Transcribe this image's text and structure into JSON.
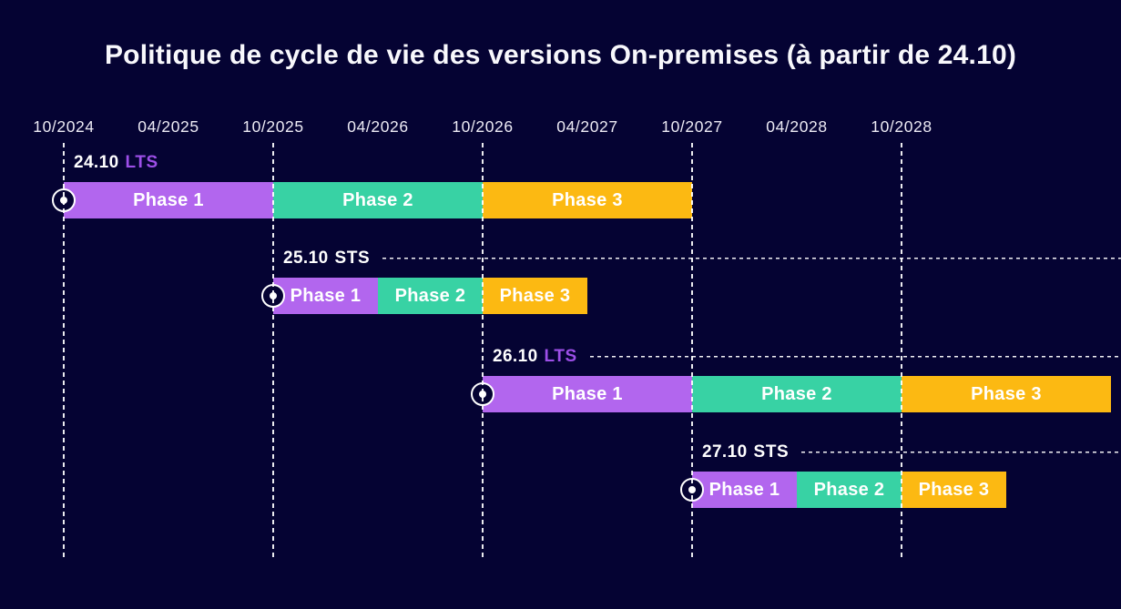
{
  "title": "Politique de cycle de vie des versions On-premises (à partir de 24.10)",
  "colors": {
    "background": "#050333",
    "bar_phase1": "#b266ee",
    "bar_phase2": "#38d2a4",
    "bar_phase3": "#fcb912",
    "lts_label": "#9d4fe8",
    "sts_label": "#ffffff",
    "text": "#ffffff",
    "gridline": "#ffffff"
  },
  "chart_data": {
    "type": "bar",
    "subtype": "gantt-release-timeline",
    "title": "Politique de cycle de vie des versions On-premises (à partir de 24.10)",
    "xlabel": "",
    "ylabel": "",
    "x_axis": {
      "ticks": [
        "10/2024",
        "04/2025",
        "10/2025",
        "04/2026",
        "10/2026",
        "04/2027",
        "10/2027",
        "04/2028",
        "10/2028"
      ],
      "gridlines_at": [
        "10/2024",
        "10/2025",
        "10/2026",
        "10/2027",
        "10/2028"
      ],
      "grid": "vertical-dashed-yearly"
    },
    "legend": "none",
    "rows": [
      {
        "version": "24.10",
        "release_type": "LTS",
        "phases": [
          {
            "name": "Phase 1",
            "start": "10/2024",
            "end": "10/2025"
          },
          {
            "name": "Phase 2",
            "start": "10/2025",
            "end": "10/2026"
          },
          {
            "name": "Phase 3",
            "start": "10/2026",
            "end": "10/2027"
          }
        ]
      },
      {
        "version": "25.10",
        "release_type": "STS",
        "phases": [
          {
            "name": "Phase 1",
            "start": "10/2025",
            "end": "04/2026"
          },
          {
            "name": "Phase 2",
            "start": "04/2026",
            "end": "10/2026"
          },
          {
            "name": "Phase 3",
            "start": "10/2026",
            "end": "04/2027"
          }
        ]
      },
      {
        "version": "26.10",
        "release_type": "LTS",
        "phases": [
          {
            "name": "Phase 1",
            "start": "10/2026",
            "end": "10/2027"
          },
          {
            "name": "Phase 2",
            "start": "10/2027",
            "end": "10/2028"
          },
          {
            "name": "Phase 3",
            "start": "10/2028",
            "end": "10/2029"
          }
        ]
      },
      {
        "version": "27.10",
        "release_type": "STS",
        "phases": [
          {
            "name": "Phase 1",
            "start": "10/2027",
            "end": "04/2028"
          },
          {
            "name": "Phase 2",
            "start": "04/2028",
            "end": "10/2028"
          },
          {
            "name": "Phase 3",
            "start": "10/2028",
            "end": "04/2029"
          }
        ]
      }
    ]
  }
}
